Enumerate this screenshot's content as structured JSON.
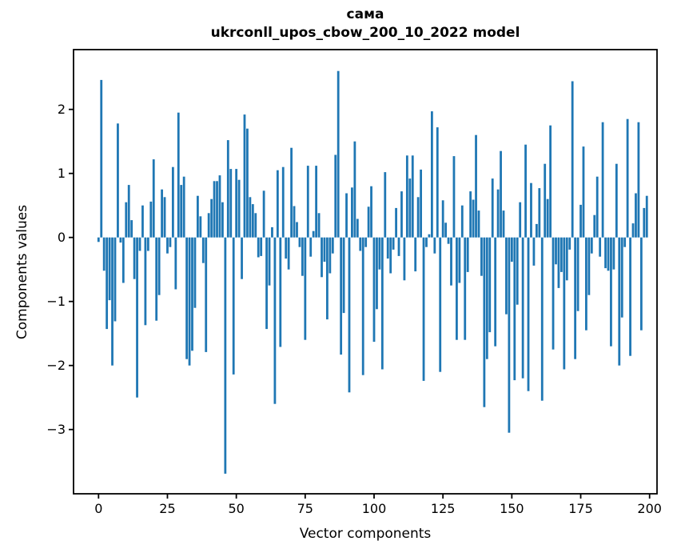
{
  "chart_data": {
    "type": "bar",
    "title": "сама",
    "subtitle": "ukrconll_upos_cbow_200_10_2022 model",
    "xlabel": "Vector components",
    "ylabel": "Components values",
    "x_ticks": [
      0,
      25,
      50,
      75,
      100,
      125,
      150,
      175,
      200
    ],
    "y_ticks": [
      2,
      1,
      0,
      -1,
      -2,
      -3
    ],
    "xlim": [
      -9.1,
      202.7
    ],
    "ylim": [
      -4.0,
      2.93
    ],
    "grid": false,
    "legend": "none",
    "bar_color": "#1f77b4",
    "categories_note": "x = vector component index 0..199",
    "values": [
      -0.07,
      2.46,
      -0.52,
      -1.43,
      -0.98,
      -2.0,
      -1.31,
      1.78,
      -0.08,
      -0.71,
      0.55,
      0.82,
      0.27,
      -0.65,
      -2.5,
      -0.21,
      0.5,
      -1.37,
      -0.21,
      0.56,
      1.22,
      -1.3,
      -0.9,
      0.75,
      0.63,
      -0.25,
      -0.15,
      1.1,
      -0.81,
      1.95,
      0.82,
      0.95,
      -1.9,
      -2.0,
      -1.77,
      -1.1,
      0.65,
      0.33,
      -0.4,
      -1.79,
      0.38,
      0.6,
      0.88,
      0.88,
      0.97,
      0.55,
      -3.69,
      1.52,
      1.07,
      -2.14,
      1.07,
      0.9,
      -0.65,
      1.92,
      1.7,
      0.63,
      0.52,
      0.38,
      -0.31,
      -0.29,
      0.73,
      -1.43,
      -0.75,
      0.16,
      -2.6,
      1.05,
      -1.71,
      1.1,
      -0.33,
      -0.5,
      1.4,
      0.49,
      0.24,
      -0.15,
      -0.6,
      -1.6,
      1.12,
      -0.3,
      0.1,
      1.12,
      0.38,
      -0.62,
      -0.38,
      -1.28,
      -0.56,
      -0.25,
      1.29,
      2.6,
      -1.83,
      -1.18,
      0.69,
      -2.42,
      0.78,
      1.5,
      0.29,
      -0.21,
      -2.15,
      -0.15,
      0.48,
      0.8,
      -1.63,
      -1.12,
      -0.5,
      -2.06,
      1.02,
      -0.33,
      -0.56,
      -0.19,
      0.46,
      -0.29,
      0.72,
      -0.67,
      1.28,
      0.92,
      1.28,
      -0.53,
      0.63,
      1.06,
      -2.24,
      -0.15,
      0.05,
      1.97,
      -0.25,
      1.72,
      -2.1,
      0.58,
      0.23,
      -0.1,
      -0.75,
      1.27,
      -1.6,
      -0.71,
      0.5,
      -1.6,
      -0.54,
      0.72,
      0.59,
      1.6,
      0.42,
      -0.6,
      -2.65,
      -1.9,
      -1.48,
      0.92,
      -1.7,
      0.75,
      1.35,
      0.42,
      -1.2,
      -3.05,
      -0.38,
      -2.23,
      -1.05,
      0.55,
      -2.2,
      1.45,
      -2.4,
      0.85,
      -0.44,
      0.21,
      0.77,
      -2.55,
      1.15,
      0.6,
      1.75,
      -1.75,
      -0.42,
      -0.79,
      -0.54,
      -2.06,
      -0.67,
      -0.19,
      2.44,
      -1.9,
      -1.15,
      0.51,
      1.42,
      -1.45,
      -0.9,
      -0.25,
      0.35,
      0.95,
      -0.3,
      1.8,
      -0.48,
      -0.52,
      -1.7,
      -0.5,
      1.15,
      -2.0,
      -1.25,
      -0.15,
      1.85,
      -1.85,
      0.22,
      0.69,
      1.8,
      -1.45,
      0.46,
      0.65
    ]
  }
}
